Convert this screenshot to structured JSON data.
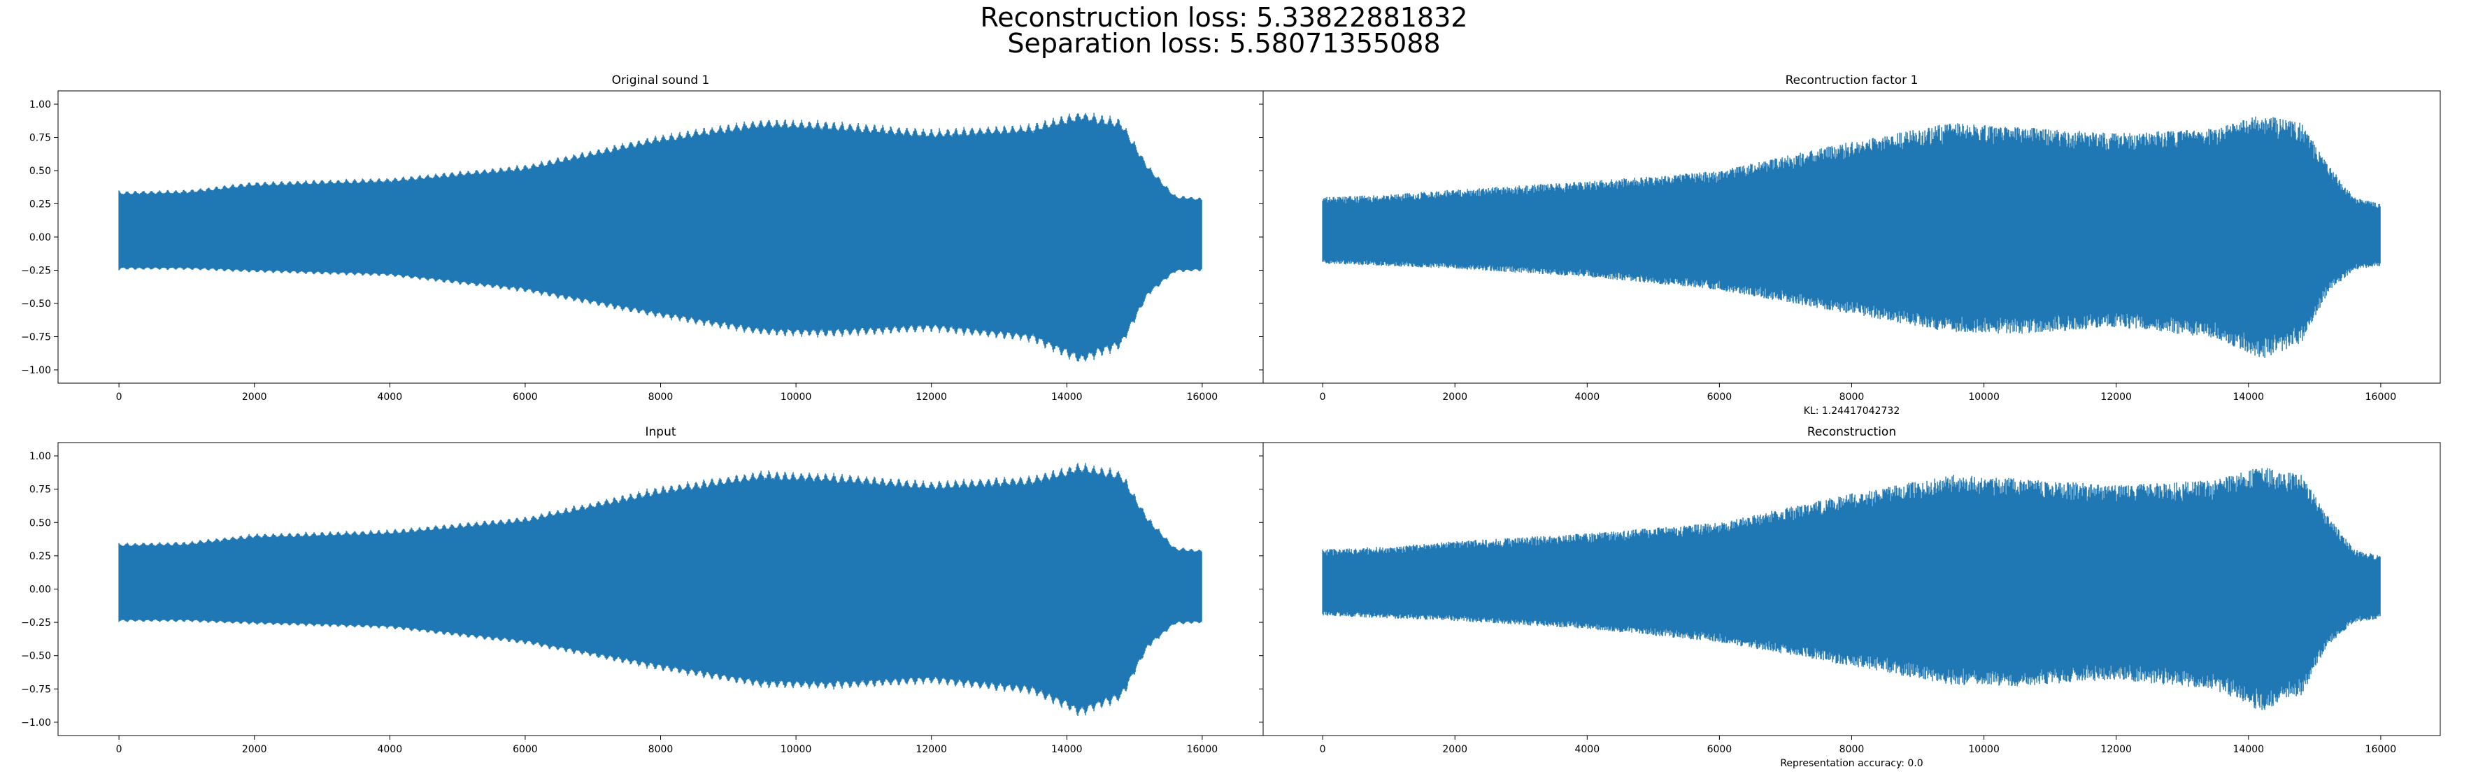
{
  "figure": {
    "suptitle_line1": "Reconstruction loss: 5.33822881832",
    "suptitle_line2": "Separation loss: 5.58071355088"
  },
  "colors": {
    "series": "#1f77b4",
    "axes": "#000000",
    "background": "#ffffff"
  },
  "chart_data": [
    {
      "type": "line",
      "title": "Original sound 1",
      "xlabel": "",
      "ylabel": "",
      "xlim": [
        -900,
        16900
      ],
      "ylim": [
        -1.1,
        1.1
      ],
      "xticks": [
        0,
        2000,
        4000,
        6000,
        8000,
        10000,
        12000,
        14000,
        16000
      ],
      "yticks": [
        1.0,
        0.75,
        0.5,
        0.25,
        0.0,
        -0.25,
        -0.5,
        -0.75,
        -1.0
      ],
      "show_yticklabels": true,
      "n_samples": 16000,
      "signal": "periodic",
      "envelope": {
        "x": [
          0,
          1000,
          2000,
          4000,
          6000,
          8000,
          9500,
          10500,
          12000,
          13500,
          14200,
          14800,
          15200,
          15600,
          16000
        ],
        "upper": [
          0.35,
          0.36,
          0.42,
          0.45,
          0.55,
          0.78,
          0.9,
          0.88,
          0.82,
          0.86,
          0.96,
          0.9,
          0.55,
          0.32,
          0.3
        ],
        "lower": [
          -0.25,
          -0.25,
          -0.27,
          -0.3,
          -0.42,
          -0.62,
          -0.75,
          -0.76,
          -0.72,
          -0.8,
          -0.97,
          -0.85,
          -0.45,
          -0.27,
          -0.26
        ]
      }
    },
    {
      "type": "line",
      "title": "Recontruction factor 1",
      "xlabel": "KL: 1.24417042732",
      "ylabel": "",
      "xlim": [
        -900,
        16900
      ],
      "ylim": [
        -1.1,
        1.1
      ],
      "xticks": [
        0,
        2000,
        4000,
        6000,
        8000,
        10000,
        12000,
        14000,
        16000
      ],
      "yticks": [
        1.0,
        0.75,
        0.5,
        0.25,
        0.0,
        -0.25,
        -0.5,
        -0.75,
        -1.0
      ],
      "show_yticklabels": false,
      "n_samples": 16000,
      "signal": "noisy",
      "envelope": {
        "x": [
          0,
          1000,
          2000,
          4000,
          6000,
          8000,
          9500,
          10500,
          12000,
          13500,
          14200,
          14800,
          15200,
          15600,
          16000
        ],
        "upper": [
          0.3,
          0.32,
          0.36,
          0.42,
          0.5,
          0.72,
          0.86,
          0.83,
          0.78,
          0.82,
          0.92,
          0.86,
          0.55,
          0.3,
          0.25
        ],
        "lower": [
          -0.2,
          -0.22,
          -0.24,
          -0.3,
          -0.4,
          -0.58,
          -0.72,
          -0.73,
          -0.68,
          -0.76,
          -0.92,
          -0.8,
          -0.42,
          -0.25,
          -0.22
        ]
      }
    },
    {
      "type": "line",
      "title": "Input",
      "xlabel": "",
      "ylabel": "",
      "xlim": [
        -900,
        16900
      ],
      "ylim": [
        -1.1,
        1.1
      ],
      "xticks": [
        0,
        2000,
        4000,
        6000,
        8000,
        10000,
        12000,
        14000,
        16000
      ],
      "yticks": [
        1.0,
        0.75,
        0.5,
        0.25,
        0.0,
        -0.25,
        -0.5,
        -0.75,
        -1.0
      ],
      "show_yticklabels": true,
      "n_samples": 16000,
      "signal": "periodic",
      "envelope": {
        "x": [
          0,
          1000,
          2000,
          4000,
          6000,
          8000,
          9500,
          10500,
          12000,
          13500,
          14200,
          14800,
          15200,
          15600,
          16000
        ],
        "upper": [
          0.35,
          0.36,
          0.42,
          0.45,
          0.55,
          0.78,
          0.9,
          0.88,
          0.82,
          0.86,
          0.96,
          0.9,
          0.55,
          0.32,
          0.3
        ],
        "lower": [
          -0.25,
          -0.25,
          -0.27,
          -0.3,
          -0.42,
          -0.62,
          -0.75,
          -0.76,
          -0.72,
          -0.8,
          -0.97,
          -0.85,
          -0.45,
          -0.27,
          -0.26
        ]
      }
    },
    {
      "type": "line",
      "title": "Reconstruction",
      "xlabel": "Representation accuracy: 0.0",
      "ylabel": "",
      "xlim": [
        -900,
        16900
      ],
      "ylim": [
        -1.1,
        1.1
      ],
      "xticks": [
        0,
        2000,
        4000,
        6000,
        8000,
        10000,
        12000,
        14000,
        16000
      ],
      "yticks": [
        1.0,
        0.75,
        0.5,
        0.25,
        0.0,
        -0.25,
        -0.5,
        -0.75,
        -1.0
      ],
      "show_yticklabels": false,
      "n_samples": 16000,
      "signal": "noisy",
      "envelope": {
        "x": [
          0,
          1000,
          2000,
          4000,
          6000,
          8000,
          9500,
          10500,
          12000,
          13500,
          14200,
          14800,
          15200,
          15600,
          16000
        ],
        "upper": [
          0.3,
          0.32,
          0.36,
          0.42,
          0.5,
          0.72,
          0.86,
          0.83,
          0.78,
          0.82,
          0.92,
          0.86,
          0.55,
          0.3,
          0.25
        ],
        "lower": [
          -0.2,
          -0.22,
          -0.24,
          -0.3,
          -0.4,
          -0.58,
          -0.72,
          -0.73,
          -0.68,
          -0.76,
          -0.92,
          -0.8,
          -0.42,
          -0.25,
          -0.22
        ]
      }
    }
  ]
}
